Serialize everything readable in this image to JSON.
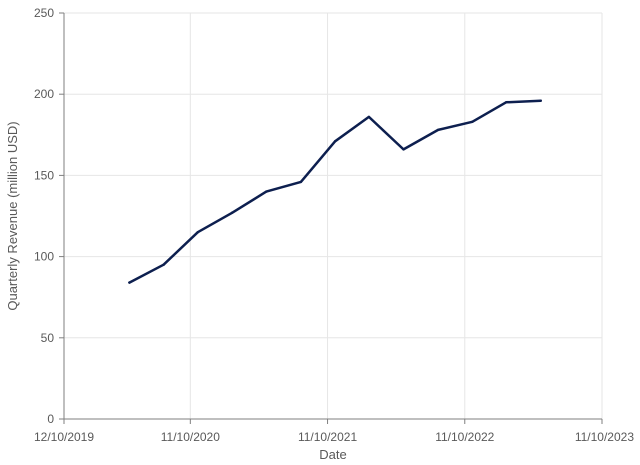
{
  "chart_data": {
    "type": "line",
    "title": "",
    "xlabel": "Date",
    "ylabel": "Quarterly Revenue (million USD)",
    "x_axis": {
      "kind": "date",
      "range": [
        "2019-12-10",
        "2023-11-10"
      ],
      "ticks": [
        "2019-12-10",
        "2020-11-10",
        "2021-11-10",
        "2022-11-10",
        "2023-11-10"
      ],
      "tick_labels": [
        "12/10/2019",
        "11/10/2020",
        "11/10/2021",
        "11/10/2022",
        "11/10/2023"
      ]
    },
    "y_axis": {
      "range": [
        0,
        250
      ],
      "ticks": [
        0,
        50,
        100,
        150,
        200,
        250
      ],
      "tick_labels": [
        "0",
        "50",
        "100",
        "150",
        "200",
        "250"
      ]
    },
    "grid": true,
    "legend": "none",
    "series": [
      {
        "color": "#0d1f4f",
        "x": [
          "2020-06-01",
          "2020-08-31",
          "2020-11-30",
          "2021-03-01",
          "2021-05-31",
          "2021-08-31",
          "2021-11-30",
          "2022-02-28",
          "2022-05-31",
          "2022-08-31",
          "2022-11-30",
          "2023-02-28",
          "2023-05-31"
        ],
        "y": [
          84,
          95,
          115,
          127,
          140,
          146,
          171,
          186,
          166,
          178,
          183,
          195,
          196
        ]
      }
    ]
  }
}
